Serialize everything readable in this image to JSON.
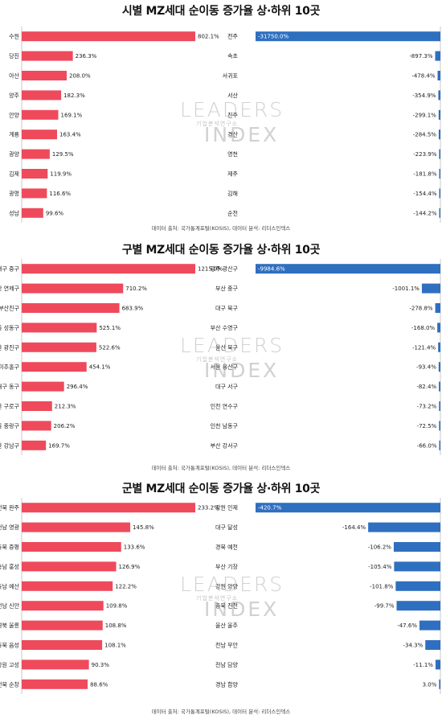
{
  "watermark": {
    "line1": "LEADERS",
    "line2": "기업분석연구소",
    "line3": "INDEX"
  },
  "footer": "데이터 출처: 국가통계포털(KOSIS), 데이터 분석: 리더스인덱스",
  "colors": {
    "up": "#ee4a5c",
    "down": "#2f6fc0"
  },
  "chart_data": [
    {
      "type": "bar",
      "title": "시별 MZ세대 순이동 증가율 상·하위 10곳",
      "left": {
        "categories": [
          "수원",
          "당진",
          "아산",
          "양주",
          "안양",
          "계룡",
          "광양",
          "김제",
          "광명",
          "성남"
        ],
        "values": [
          802.1,
          236.3,
          208.0,
          182.3,
          169.1,
          163.4,
          129.5,
          119.9,
          116.6,
          99.6
        ],
        "labels": [
          "802.1%",
          "236.3%",
          "208.0%",
          "182.3%",
          "169.1%",
          "163.4%",
          "129.5%",
          "119.9%",
          "116.6%",
          "99.6%"
        ]
      },
      "right": {
        "categories": [
          "전주",
          "속초",
          "서귀포",
          "서산",
          "진주",
          "경산",
          "영천",
          "제주",
          "김해",
          "순천"
        ],
        "values": [
          -31750.0,
          -897.3,
          -478.4,
          -354.9,
          -299.1,
          -284.5,
          -223.9,
          -181.8,
          -154.4,
          -144.2
        ],
        "labels": [
          "-31750.0%",
          "-897.3%",
          "-478.4%",
          "-354.9%",
          "-299.1%",
          "-284.5%",
          "-223.9%",
          "-181.8%",
          "-154.4%",
          "-144.2%"
        ]
      }
    },
    {
      "type": "bar",
      "title": "구별 MZ세대 순이동 증가율 상·하위 10곳",
      "left": {
        "categories": [
          "대구 중구",
          "부산 연제구",
          "부산 부산진구",
          "서울 성동구",
          "서울 광진구",
          "인천 미추홀구",
          "대구 동구",
          "서울 구로구",
          "서울 중랑구",
          "서울 강남구"
        ],
        "values": [
          1215.0,
          710.2,
          683.9,
          525.1,
          522.6,
          454.1,
          296.4,
          212.3,
          206.2,
          169.7
        ],
        "labels": [
          "1215.0%",
          "710.2%",
          "683.9%",
          "525.1%",
          "522.6%",
          "454.1%",
          "296.4%",
          "212.3%",
          "206.2%",
          "169.7%"
        ]
      },
      "right": {
        "categories": [
          "광주 광산구",
          "부산 중구",
          "대구 북구",
          "부산 수영구",
          "울산 북구",
          "서울 용산구",
          "대구 서구",
          "인천 연수구",
          "인천 남동구",
          "부산 강서구"
        ],
        "values": [
          -9984.6,
          -1001.1,
          -278.8,
          -168.0,
          -121.4,
          -93.4,
          -82.4,
          -73.2,
          -72.5,
          -66.0
        ],
        "labels": [
          "-9984.6%",
          "-1001.1%",
          "-278.8%",
          "-168.0%",
          "-121.4%",
          "-93.4%",
          "-82.4%",
          "-73.2%",
          "-72.5%",
          "-66.0%"
        ]
      }
    },
    {
      "type": "bar",
      "title": "군별 MZ세대 순이동 증가율 상·하위 10곳",
      "left": {
        "categories": [
          "전북 완주",
          "전남 영광",
          "충북 증평",
          "충남 홍성",
          "충남 예산",
          "전남 신안",
          "경북 울릉",
          "충북 음성",
          "강원 고성",
          "전북 순창"
        ],
        "values": [
          233.2,
          145.8,
          133.6,
          126.9,
          122.2,
          109.8,
          108.8,
          108.1,
          90.3,
          88.6
        ],
        "labels": [
          "233.2%",
          "145.8%",
          "133.6%",
          "126.9%",
          "122.2%",
          "109.8%",
          "108.8%",
          "108.1%",
          "90.3%",
          "88.6%"
        ]
      },
      "right": {
        "categories": [
          "강원 인제",
          "대구 달성",
          "경북 예천",
          "부산 기장",
          "강원 양양",
          "충북 진천",
          "울산 울주",
          "전남 무안",
          "전남 담양",
          "경남 함양"
        ],
        "values": [
          -420.7,
          -164.4,
          -106.2,
          -105.4,
          -101.8,
          -99.7,
          -47.6,
          -34.3,
          -11.1,
          3.0
        ],
        "labels": [
          "-420.7%",
          "-164.4%",
          "-106.2%",
          "-105.4%",
          "-101.8%",
          "-99.7%",
          "-47.6%",
          "-34.3%",
          "-11.1%",
          "3.0%"
        ]
      }
    }
  ]
}
